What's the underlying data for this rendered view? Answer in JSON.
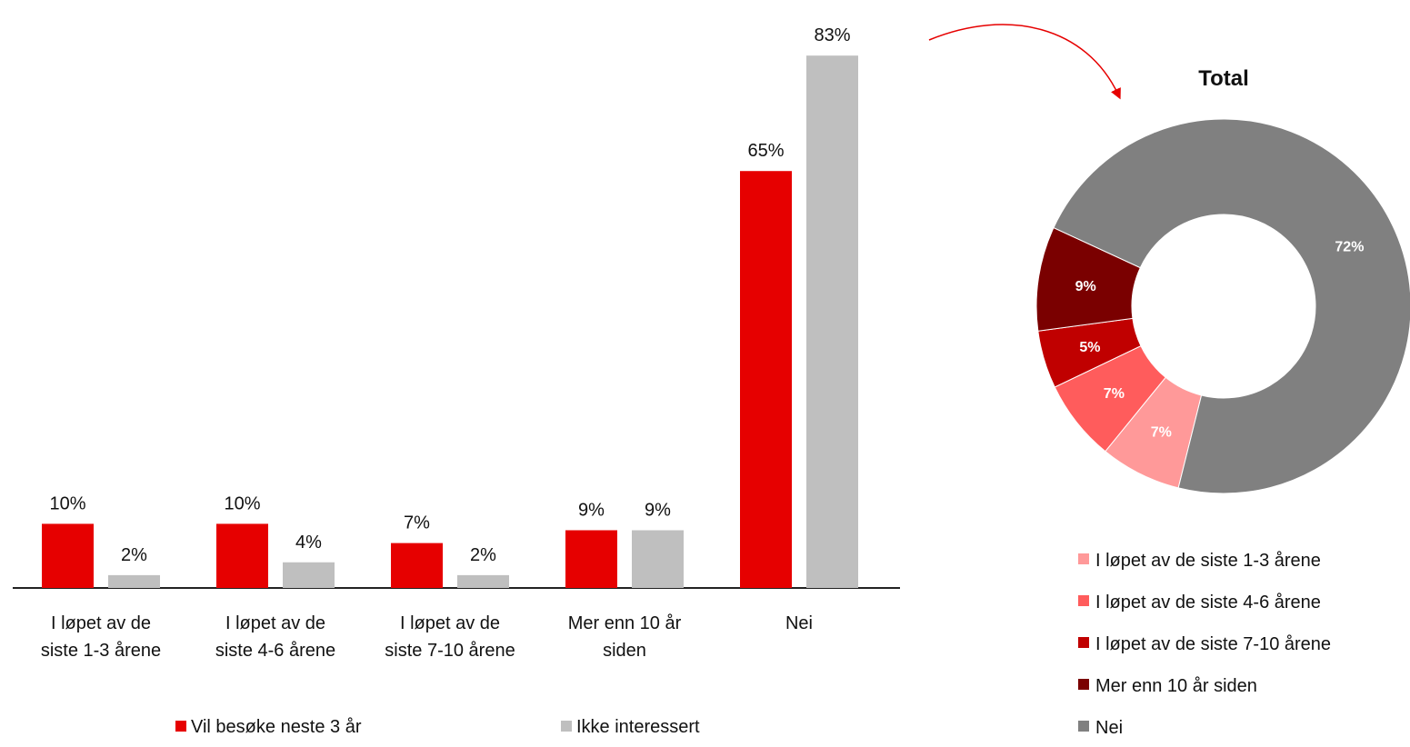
{
  "chart_data": [
    {
      "type": "bar",
      "title": "",
      "xlabel": "",
      "ylabel": "",
      "ylim": [
        0,
        86
      ],
      "categories": [
        [
          "I løpet av de",
          "siste 1-3 årene"
        ],
        [
          "I løpet av de",
          "siste 4-6 årene"
        ],
        [
          "I løpet av de",
          "siste 7-10 årene"
        ],
        [
          "Mer enn 10 år",
          "siden"
        ],
        [
          "Nei"
        ]
      ],
      "series": [
        {
          "name": "Vil besøke neste 3 år",
          "color": "#e60000",
          "values": [
            10,
            10,
            7,
            9,
            65
          ],
          "labels": [
            "10%",
            "10%",
            "7%",
            "9%",
            "65%"
          ]
        },
        {
          "name": "Ikke interessert",
          "color": "#bfbfbf",
          "values": [
            2,
            4,
            2,
            9,
            83
          ],
          "labels": [
            "2%",
            "4%",
            "2%",
            "9%",
            "83%"
          ]
        }
      ],
      "legend": "bottom",
      "grid": false
    },
    {
      "type": "pie",
      "subtype": "donut",
      "title": "Total",
      "slices": [
        {
          "name": "I løpet av de siste 1-3 årene",
          "value": 7,
          "label": "7%",
          "color": "#ff9999"
        },
        {
          "name": "I løpet av de siste 4-6 årene",
          "value": 7,
          "label": "7%",
          "color": "#ff5c5c"
        },
        {
          "name": "I løpet av de siste 7-10 årene",
          "value": 5,
          "label": "5%",
          "color": "#c00000"
        },
        {
          "name": "Mer enn 10 år siden",
          "value": 9,
          "label": "9%",
          "color": "#7a0000"
        },
        {
          "name": "Nei",
          "value": 72,
          "label": "72%",
          "color": "#808080"
        }
      ],
      "legend": "bottom-right"
    }
  ],
  "colors": {
    "arrow": "#e60000",
    "axis": "#222222"
  }
}
